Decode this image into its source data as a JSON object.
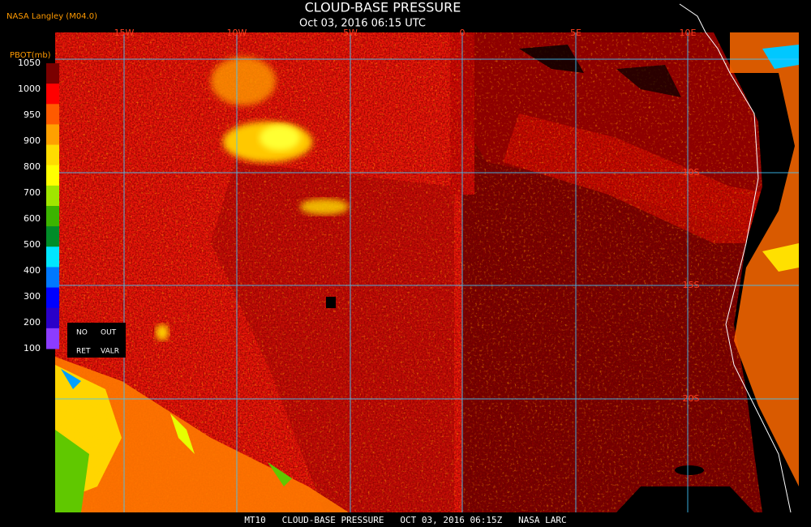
{
  "header": {
    "agency": "NASA Langley (M04.0)",
    "title": "CLOUD-BASE PRESSURE",
    "datetime": "Oct 03, 2016 06:15 UTC"
  },
  "colorbar": {
    "label": "PBOT(mb)",
    "ticks": [
      "1050",
      "1000",
      "950",
      "900",
      "800",
      "700",
      "600",
      "500",
      "400",
      "300",
      "200",
      "100"
    ],
    "colors": [
      "#7a0000",
      "#ff0000",
      "#ff5a00",
      "#ffa000",
      "#ffdc00",
      "#ffff00",
      "#a0e600",
      "#3cb400",
      "#008c28",
      "#00e6ff",
      "#0078ff",
      "#0000ff",
      "#2a00c8",
      "#8c3cff"
    ],
    "legend": [
      [
        "NO",
        "OUT"
      ],
      [
        "RET",
        "VALR"
      ]
    ]
  },
  "map": {
    "longitudes": [
      "15W",
      "10W",
      "5W",
      "0",
      "5E",
      "10E"
    ],
    "latitudes": [
      "10S",
      "15S",
      "20S"
    ]
  },
  "footer": "MT10   CLOUD-BASE PRESSURE   OCT 03, 2016 06:15Z   NASA LARC"
}
